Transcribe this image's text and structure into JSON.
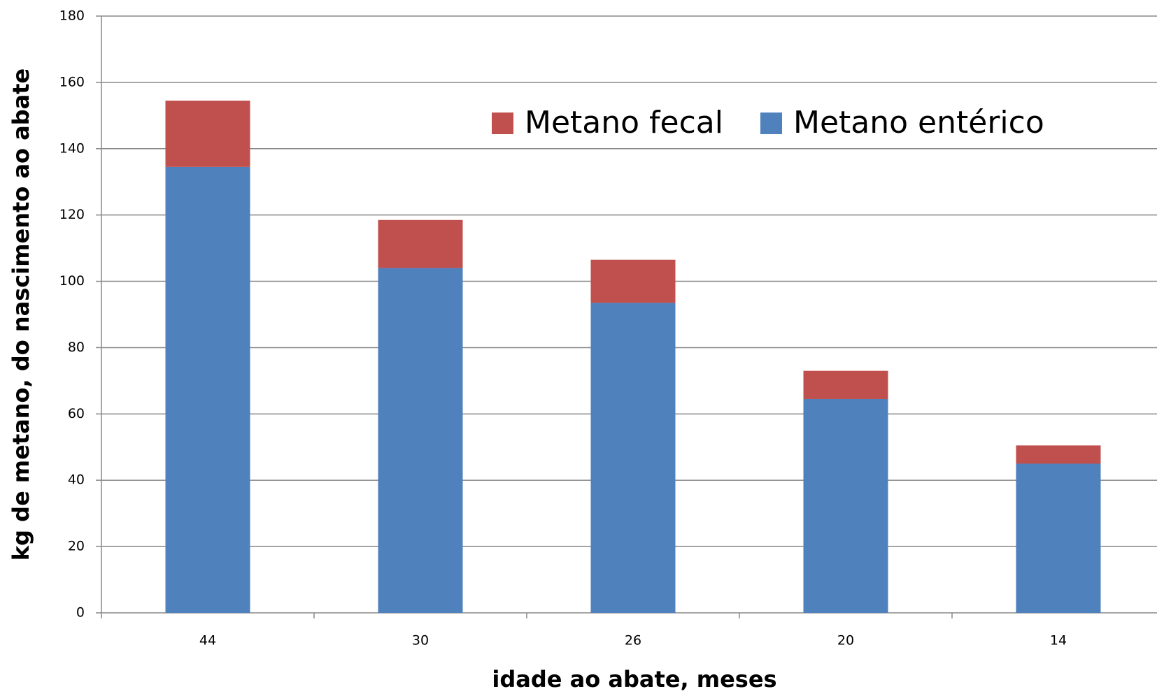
{
  "chart_data": {
    "type": "stacked_bar",
    "xlabel": "idade ao abate, meses",
    "ylabel": "kg de metano, do nascimento ao abate",
    "categories": [
      "44",
      "30",
      "26",
      "20",
      "14"
    ],
    "series": [
      {
        "name": "Metano fecal",
        "color": "#c0504d",
        "values": [
          20,
          14.5,
          13,
          8.5,
          5.5
        ]
      },
      {
        "name": "Metano entérico",
        "color": "#4f81bd",
        "values": [
          134.5,
          104,
          93.5,
          64.5,
          45
        ]
      }
    ],
    "ylim": [
      0,
      180
    ],
    "yticks": [
      0,
      20,
      40,
      60,
      80,
      100,
      120,
      140,
      160,
      180
    ],
    "grid": true,
    "legend": "top-right"
  }
}
